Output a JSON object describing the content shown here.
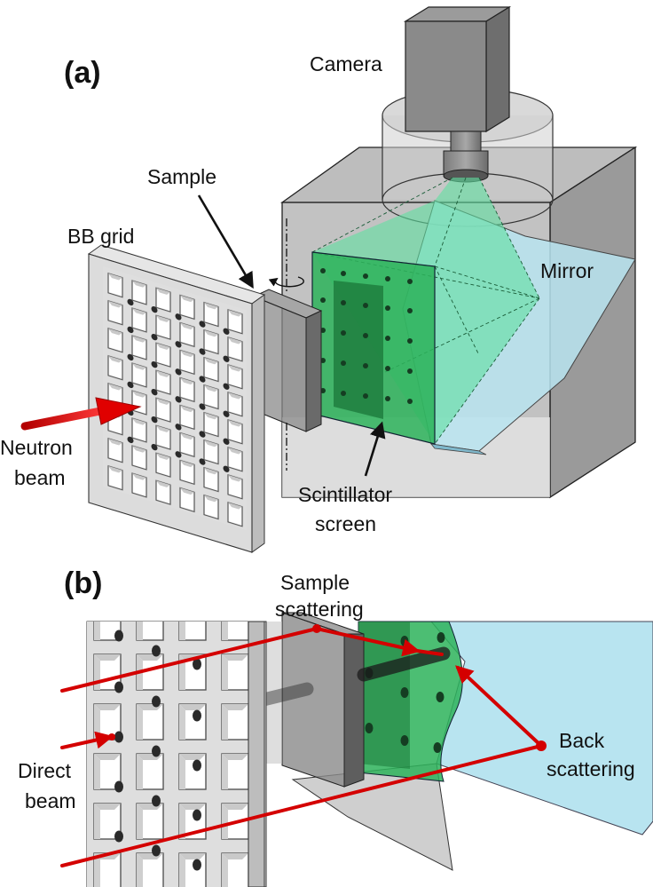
{
  "panels": {
    "a": {
      "label": "(a)",
      "labels": {
        "camera": "Camera",
        "sample": "Sample",
        "bb_grid": "BB grid",
        "mirror": "Mirror",
        "neutron_beam_1": "Neutron",
        "neutron_beam_2": "beam",
        "scintillator_1": "Scintillator",
        "scintillator_2": "screen"
      }
    },
    "b": {
      "label": "(b)",
      "labels": {
        "sample_scattering_1": "Sample",
        "sample_scattering_2": "scattering",
        "direct_beam_1": "Direct",
        "direct_beam_2": "beam",
        "back_scattering_1": "Back",
        "back_scattering_2": "scattering"
      }
    }
  },
  "colors": {
    "beam_red": "#d40000",
    "scintillator_green": "#2db35a",
    "light_cone_green": "#5fe0a0",
    "mirror_blue": "#b8e4f0",
    "housing_gray": "#8c8c8c",
    "grid_gray": "#d9d9d9",
    "bb_dot": "#2a2a2a"
  },
  "icons": [
    "rotation-arrow-icon",
    "beam-arrow-icon",
    "pointer-arrow-icon"
  ]
}
